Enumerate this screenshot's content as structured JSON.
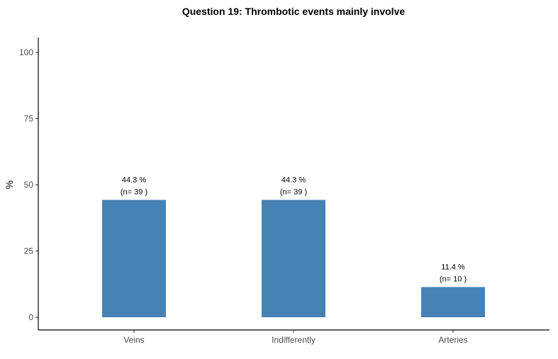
{
  "chart_data": {
    "type": "bar",
    "title": "Question 19: Thrombotic events mainly involve",
    "xlabel": "",
    "ylabel": "%",
    "categories": [
      "Veins",
      "Indifferently",
      "Arteries"
    ],
    "values": [
      44.3,
      44.3,
      11.4
    ],
    "counts": [
      39,
      39,
      10
    ],
    "data_labels": [
      {
        "pct": "44.3 %",
        "n": "(n= 39 )"
      },
      {
        "pct": "44.3 %",
        "n": "(n= 39 )"
      },
      {
        "pct": "11.4 %",
        "n": "(n= 10 )"
      }
    ],
    "yticks": [
      0,
      25,
      50,
      75,
      100
    ],
    "ytick_labels": [
      "0",
      "25",
      "50",
      "75",
      "100"
    ],
    "ylim": [
      0,
      100
    ],
    "bar_color": "#4682b4",
    "grid": false,
    "legend": "none"
  }
}
